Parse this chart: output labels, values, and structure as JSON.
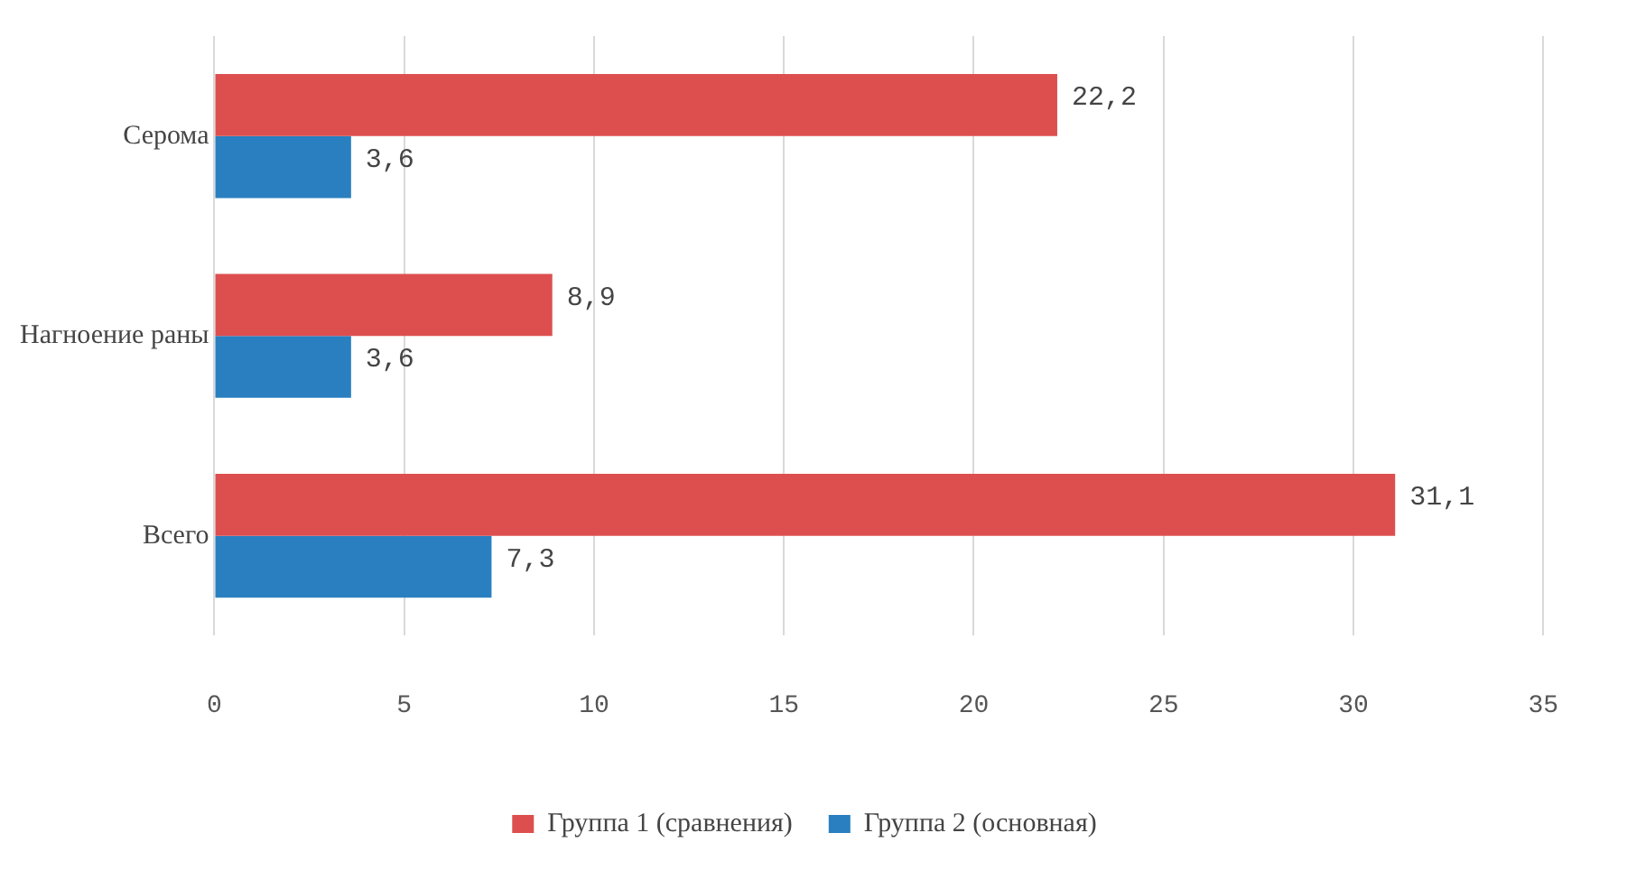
{
  "chart_data": {
    "type": "bar",
    "orientation": "horizontal",
    "categories": [
      "Серома",
      "Нагноение раны",
      "Всего"
    ],
    "series": [
      {
        "name": "Группа 1 (сравнения)",
        "color": "#dd4f4f",
        "values": [
          22.2,
          8.9,
          31.1
        ],
        "value_labels": [
          "22,2",
          "8,9",
          "31,1"
        ]
      },
      {
        "name": "Группа 2 (основная)",
        "color": "#2a7fc0",
        "values": [
          3.6,
          3.6,
          7.3
        ],
        "value_labels": [
          "3,6",
          "3,6",
          "7,3"
        ]
      }
    ],
    "xlim": [
      0,
      35
    ],
    "xticks": [
      0,
      5,
      10,
      15,
      20,
      25,
      30,
      35
    ],
    "grid": "x",
    "legend": "bottom"
  }
}
